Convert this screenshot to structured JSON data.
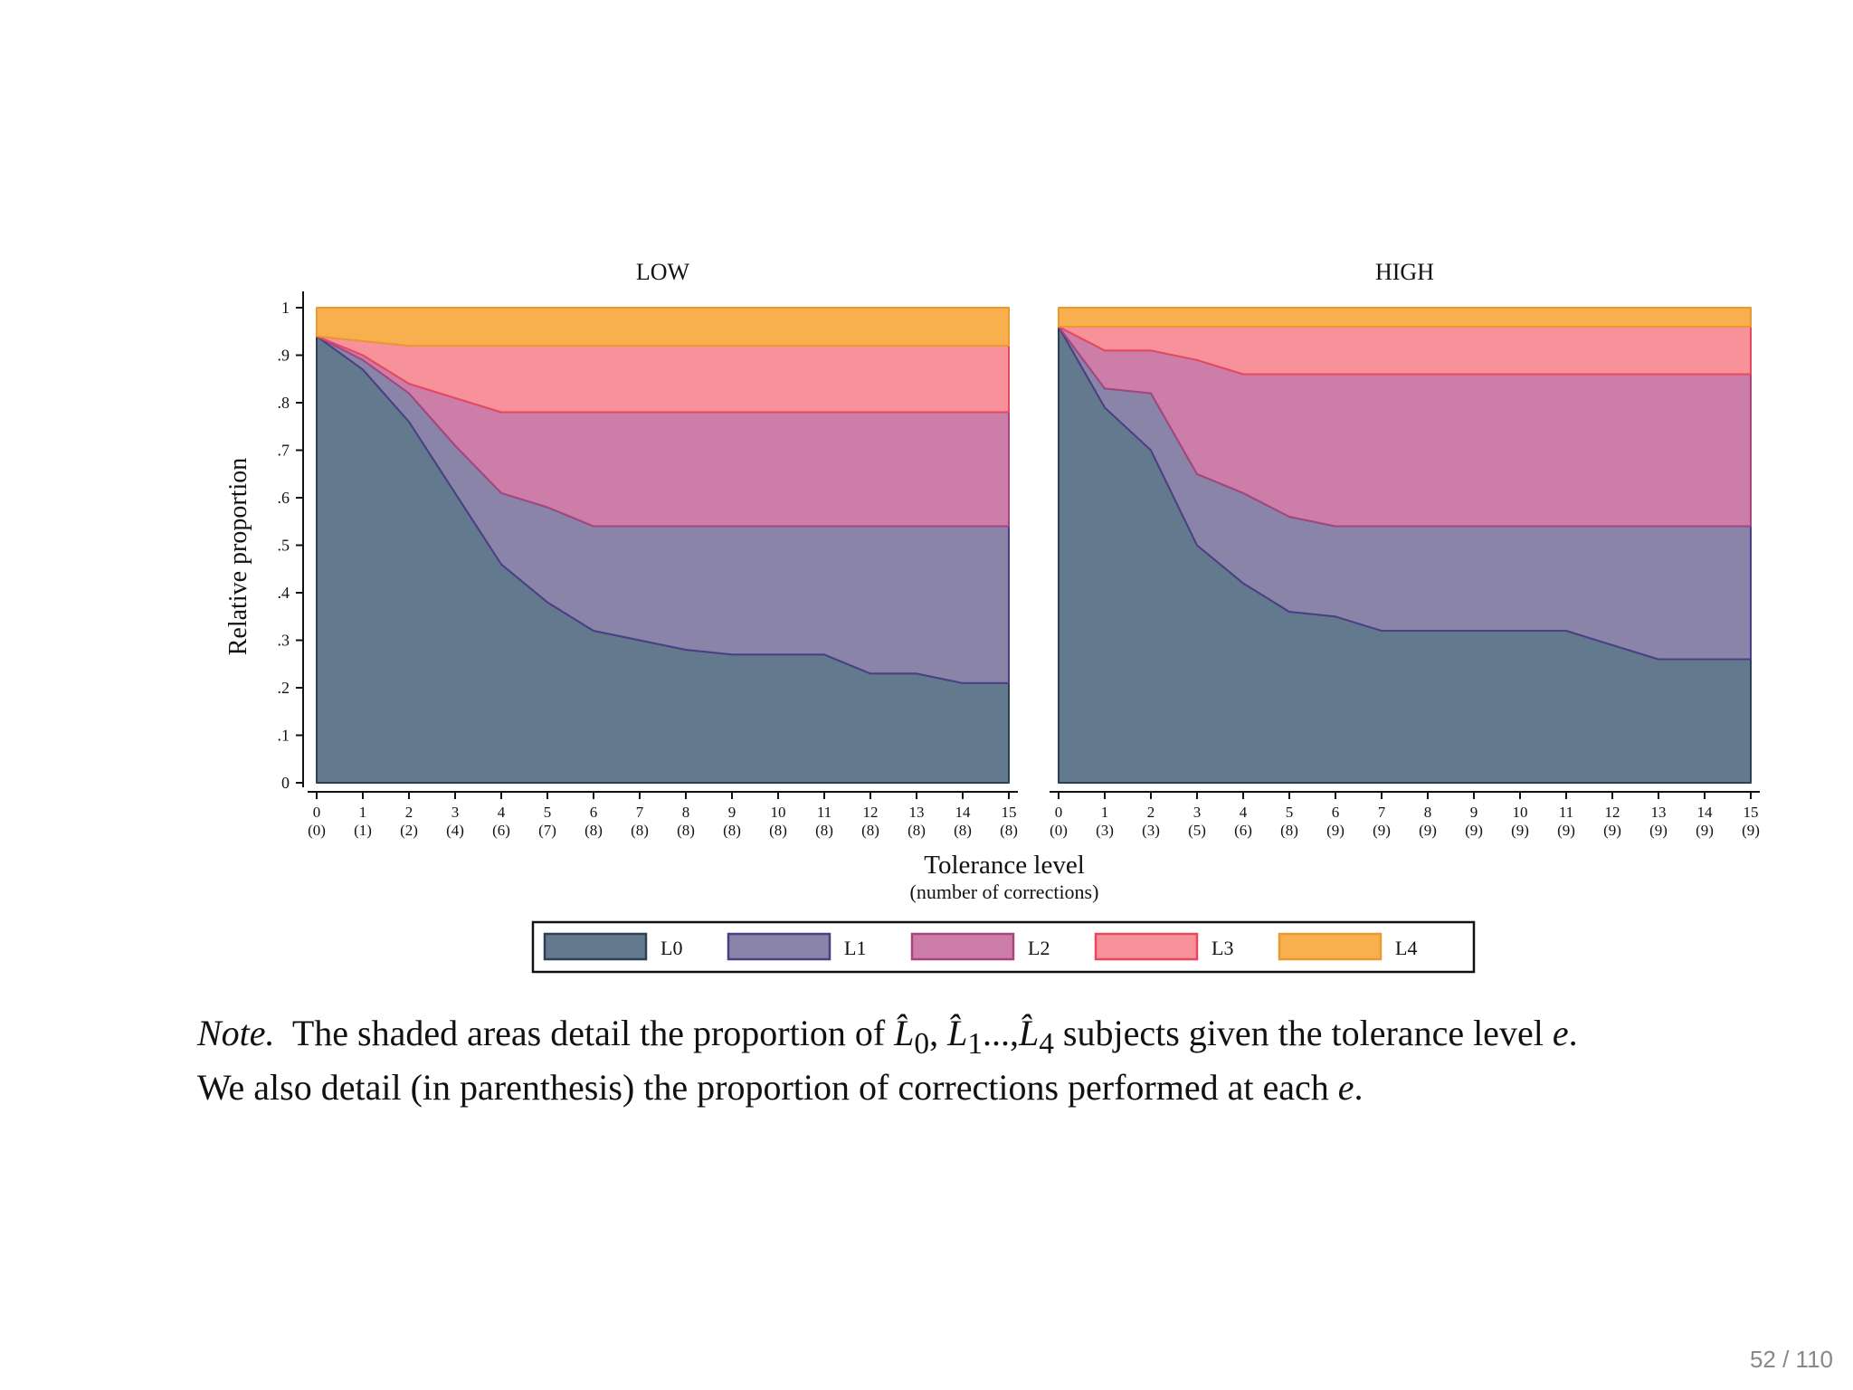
{
  "chart_data": {
    "type": "area",
    "ylabel": "Relative proportion",
    "xlabel": "Tolerance level",
    "xlabel_sub": "(number of corrections)",
    "ylim": [
      0,
      1
    ],
    "yticks": [
      "0",
      ".1",
      ".2",
      ".3",
      ".4",
      ".5",
      ".6",
      ".7",
      ".8",
      ".9",
      "1"
    ],
    "x": [
      0,
      1,
      2,
      3,
      4,
      5,
      6,
      7,
      8,
      9,
      10,
      11,
      12,
      13,
      14,
      15
    ],
    "series_names": [
      "L0",
      "L1",
      "L2",
      "L3",
      "L4"
    ],
    "colors": [
      "#637a8e",
      "#8a84a9",
      "#cc7da8",
      "#f7919a",
      "#f8b04f"
    ],
    "edge_colors": [
      "#2c4158",
      "#4b3f85",
      "#a6457e",
      "#e8475e",
      "#e89a30"
    ],
    "legend_position": "bottom",
    "panels": [
      {
        "title": "LOW",
        "corrections": [
          "(0)",
          "(1)",
          "(2)",
          "(4)",
          "(6)",
          "(7)",
          "(8)",
          "(8)",
          "(8)",
          "(8)",
          "(8)",
          "(8)",
          "(8)",
          "(8)",
          "(8)",
          "(8)"
        ],
        "cumulative": {
          "L0": [
            0.94,
            0.87,
            0.76,
            0.61,
            0.46,
            0.38,
            0.32,
            0.3,
            0.28,
            0.27,
            0.27,
            0.27,
            0.23,
            0.23,
            0.21,
            0.21
          ],
          "L1": [
            0.94,
            0.89,
            0.82,
            0.71,
            0.61,
            0.58,
            0.54,
            0.54,
            0.54,
            0.54,
            0.54,
            0.54,
            0.54,
            0.54,
            0.54,
            0.54
          ],
          "L2": [
            0.94,
            0.9,
            0.84,
            0.81,
            0.78,
            0.78,
            0.78,
            0.78,
            0.78,
            0.78,
            0.78,
            0.78,
            0.78,
            0.78,
            0.78,
            0.78
          ],
          "L3": [
            0.94,
            0.93,
            0.92,
            0.92,
            0.92,
            0.92,
            0.92,
            0.92,
            0.92,
            0.92,
            0.92,
            0.92,
            0.92,
            0.92,
            0.92,
            0.92
          ],
          "L4": [
            1,
            1,
            1,
            1,
            1,
            1,
            1,
            1,
            1,
            1,
            1,
            1,
            1,
            1,
            1,
            1
          ]
        }
      },
      {
        "title": "HIGH",
        "corrections": [
          "(0)",
          "(3)",
          "(3)",
          "(5)",
          "(6)",
          "(8)",
          "(9)",
          "(9)",
          "(9)",
          "(9)",
          "(9)",
          "(9)",
          "(9)",
          "(9)",
          "(9)",
          "(9)"
        ],
        "cumulative": {
          "L0": [
            0.96,
            0.79,
            0.7,
            0.5,
            0.42,
            0.36,
            0.35,
            0.32,
            0.32,
            0.32,
            0.32,
            0.32,
            0.29,
            0.26,
            0.26,
            0.26
          ],
          "L1": [
            0.96,
            0.83,
            0.82,
            0.65,
            0.61,
            0.56,
            0.54,
            0.54,
            0.54,
            0.54,
            0.54,
            0.54,
            0.54,
            0.54,
            0.54,
            0.54
          ],
          "L2": [
            0.96,
            0.91,
            0.91,
            0.89,
            0.86,
            0.86,
            0.86,
            0.86,
            0.86,
            0.86,
            0.86,
            0.86,
            0.86,
            0.86,
            0.86,
            0.86
          ],
          "L3": [
            0.96,
            0.96,
            0.96,
            0.96,
            0.96,
            0.96,
            0.96,
            0.96,
            0.96,
            0.96,
            0.96,
            0.96,
            0.96,
            0.96,
            0.96,
            0.96
          ],
          "L4": [
            1,
            1,
            1,
            1,
            1,
            1,
            1,
            1,
            1,
            1,
            1,
            1,
            1,
            1,
            1,
            1
          ]
        }
      }
    ]
  },
  "note": {
    "label": "Note.",
    "line1_text": "The shaded areas detail the proportion of",
    "l0_symbol": "L̂",
    "l0_sub": "0",
    "l1_symbol": "L̂",
    "l1_sub": "1",
    "ellipsis": "...,",
    "l4_symbol": "L̂",
    "l4_sub": "4",
    "line1_end": "subjects given the tolerance level",
    "e": "e",
    "line2_text": "We also detail (in parenthesis) the proportion of corrections performed at each"
  },
  "page_number": "52 / 110"
}
